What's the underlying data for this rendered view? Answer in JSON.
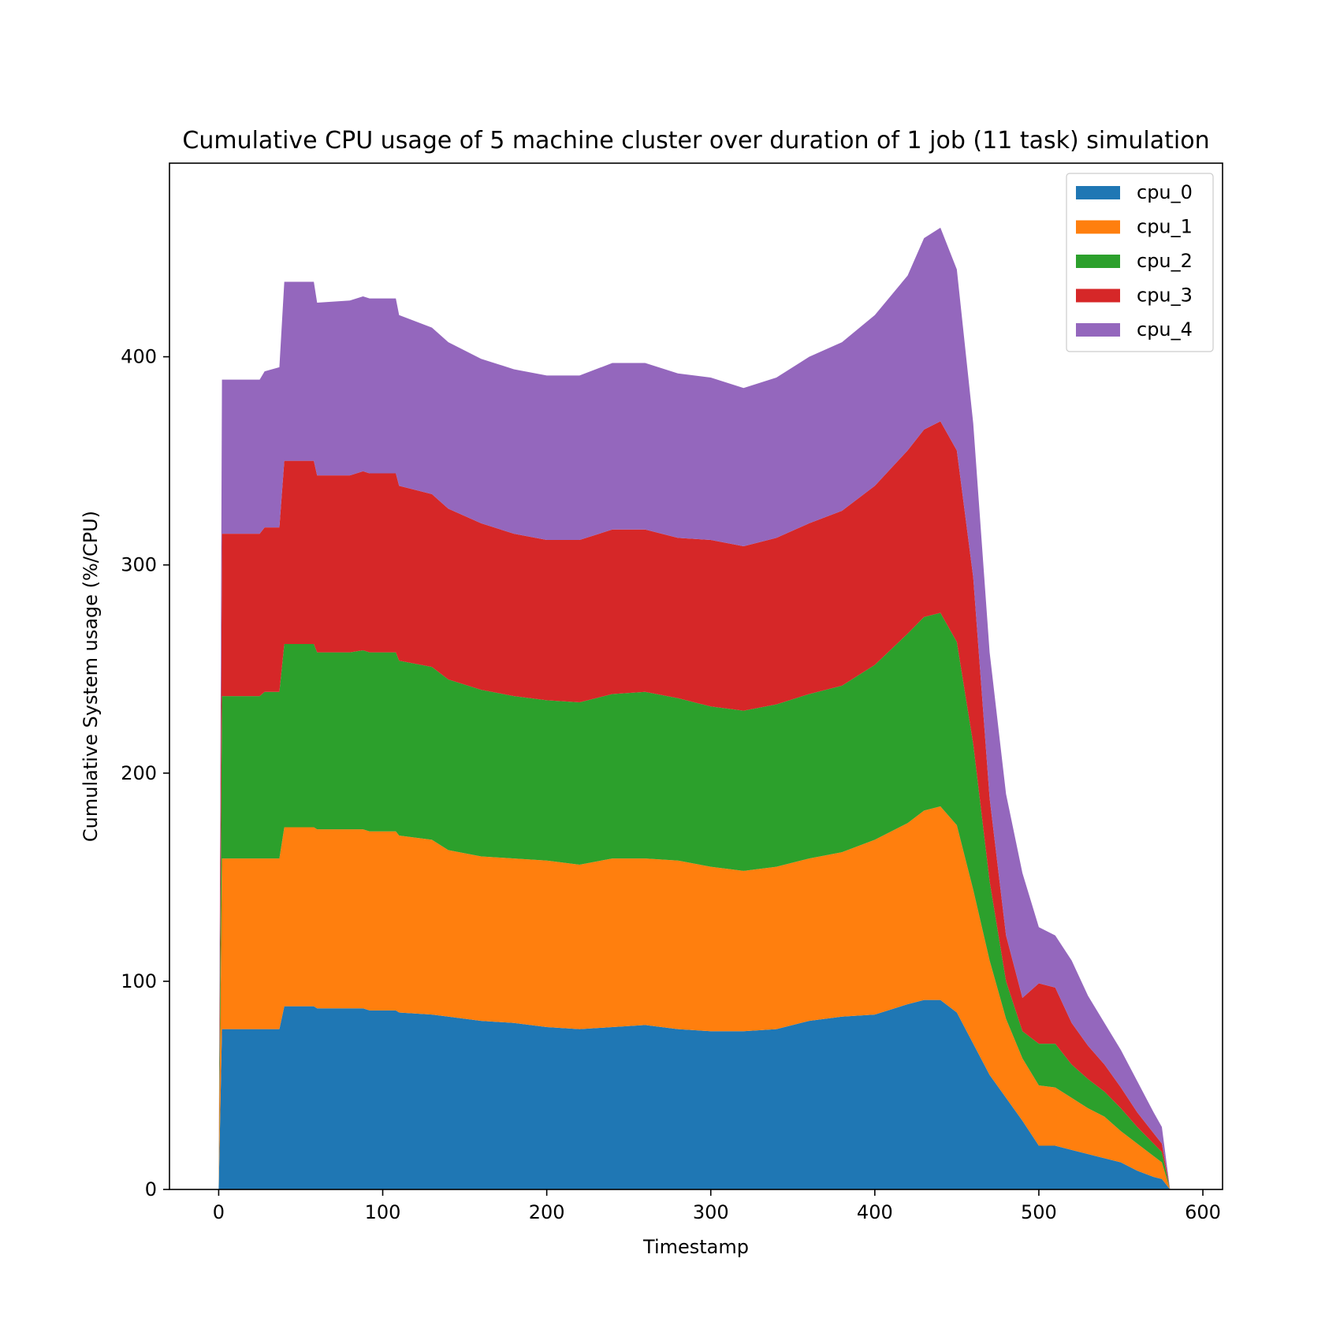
{
  "chart_data": {
    "type": "area",
    "stacked": true,
    "title": "Cumulative CPU usage of 5 machine cluster over duration of 1 job (11 task) simulation",
    "xlabel": "Timestamp",
    "ylabel": "Cumulative System usage (%/CPU)",
    "xlim": [
      -30,
      612
    ],
    "ylim": [
      0,
      493
    ],
    "xticks": [
      0,
      100,
      200,
      300,
      400,
      500,
      600
    ],
    "yticks": [
      0,
      100,
      200,
      300,
      400
    ],
    "legend_position": "top-right",
    "x": [
      0,
      2,
      25,
      28,
      37,
      40,
      58,
      60,
      80,
      88,
      92,
      108,
      110,
      130,
      140,
      160,
      180,
      200,
      220,
      240,
      260,
      280,
      300,
      320,
      340,
      360,
      380,
      400,
      420,
      430,
      440,
      450,
      460,
      470,
      480,
      490,
      500,
      510,
      520,
      530,
      540,
      550,
      560,
      570,
      575,
      580
    ],
    "series": [
      {
        "name": "cpu_0",
        "color": "#1f77b4",
        "values": [
          0,
          77,
          77,
          77,
          77,
          88,
          88,
          87,
          87,
          87,
          86,
          86,
          85,
          84,
          83,
          81,
          80,
          78,
          77,
          78,
          79,
          77,
          76,
          76,
          77,
          81,
          83,
          84,
          89,
          91,
          91,
          85,
          70,
          55,
          44,
          33,
          21,
          21,
          19,
          17,
          15,
          13,
          9,
          6,
          5,
          0
        ]
      },
      {
        "name": "cpu_1",
        "color": "#ff7f0e",
        "values": [
          0,
          82,
          82,
          82,
          82,
          86,
          86,
          86,
          86,
          86,
          86,
          86,
          85,
          84,
          80,
          79,
          79,
          80,
          79,
          81,
          80,
          81,
          79,
          77,
          78,
          78,
          79,
          84,
          87,
          91,
          93,
          90,
          74,
          55,
          38,
          30,
          29,
          28,
          25,
          22,
          20,
          15,
          13,
          10,
          8,
          0
        ]
      },
      {
        "name": "cpu_2",
        "color": "#2ca02c",
        "values": [
          0,
          78,
          78,
          80,
          80,
          88,
          88,
          85,
          85,
          86,
          86,
          86,
          84,
          83,
          82,
          80,
          78,
          77,
          78,
          79,
          80,
          78,
          77,
          77,
          78,
          79,
          80,
          84,
          91,
          93,
          93,
          88,
          70,
          38,
          18,
          13,
          20,
          21,
          16,
          14,
          12,
          11,
          8,
          6,
          5,
          0
        ]
      },
      {
        "name": "cpu_3",
        "color": "#d62728",
        "values": [
          0,
          78,
          78,
          79,
          79,
          88,
          88,
          85,
          85,
          86,
          86,
          86,
          84,
          83,
          82,
          80,
          78,
          77,
          78,
          79,
          78,
          77,
          80,
          79,
          80,
          82,
          84,
          86,
          88,
          90,
          92,
          92,
          80,
          40,
          22,
          16,
          29,
          27,
          20,
          16,
          13,
          10,
          7,
          5,
          4,
          0
        ]
      },
      {
        "name": "cpu_4",
        "color": "#9467bd",
        "values": [
          0,
          74,
          74,
          75,
          77,
          86,
          86,
          83,
          84,
          84,
          84,
          84,
          82,
          80,
          80,
          79,
          79,
          79,
          79,
          80,
          80,
          79,
          78,
          76,
          77,
          80,
          81,
          82,
          84,
          92,
          93,
          87,
          74,
          70,
          68,
          60,
          27,
          25,
          30,
          24,
          20,
          18,
          15,
          10,
          8,
          0
        ]
      }
    ]
  }
}
